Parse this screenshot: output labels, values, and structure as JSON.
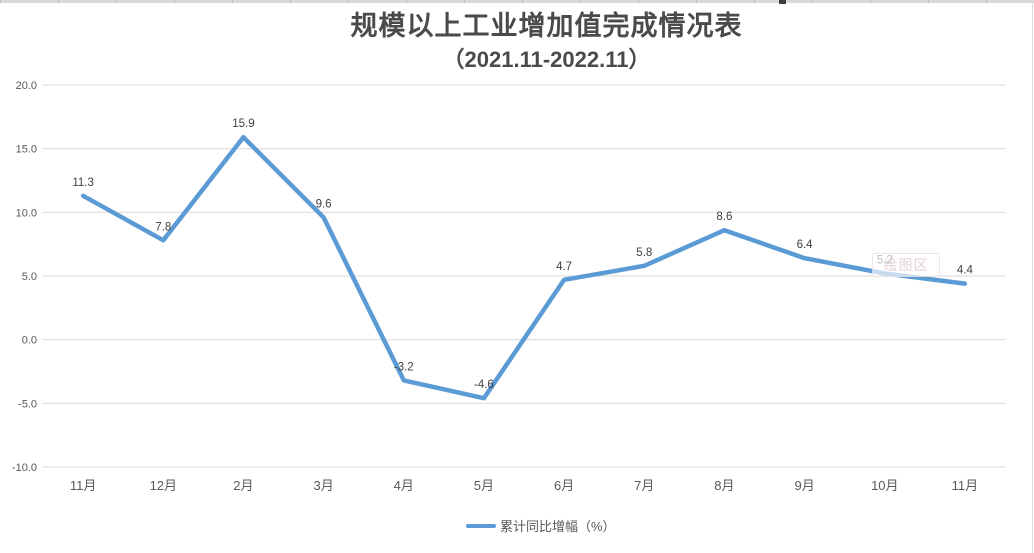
{
  "chart_data": {
    "type": "line",
    "title": "规模以上工业增加值完成情况表",
    "subtitle": "（2021.11-2022.11）",
    "categories": [
      "11月",
      "12月",
      "2月",
      "3月",
      "4月",
      "5月",
      "6月",
      "7月",
      "8月",
      "9月",
      "10月",
      "11月"
    ],
    "series": [
      {
        "name": "累计同比增幅（%）",
        "color": "#5B9BD5",
        "values": [
          11.3,
          7.8,
          15.9,
          9.6,
          -3.2,
          -4.6,
          4.7,
          5.8,
          8.6,
          6.4,
          5.2,
          4.4
        ]
      }
    ],
    "ylim": [
      -10,
      20
    ],
    "y_ticks": [
      20,
      15,
      10,
      5,
      0,
      -5,
      -10
    ],
    "y_tick_labels": [
      "20.0",
      "15.0",
      "10.0",
      "5.0",
      "0.0",
      "-5.0",
      "-10.0"
    ],
    "grid": true,
    "legend_position": "bottom",
    "plot_area_tooltip": "绘图区",
    "colors": {
      "line": "#5B9BD5",
      "grid": "#D9D9D9",
      "tick_text": "#595959",
      "data_label": "#404040",
      "title_text": "#4A4A4A"
    }
  }
}
